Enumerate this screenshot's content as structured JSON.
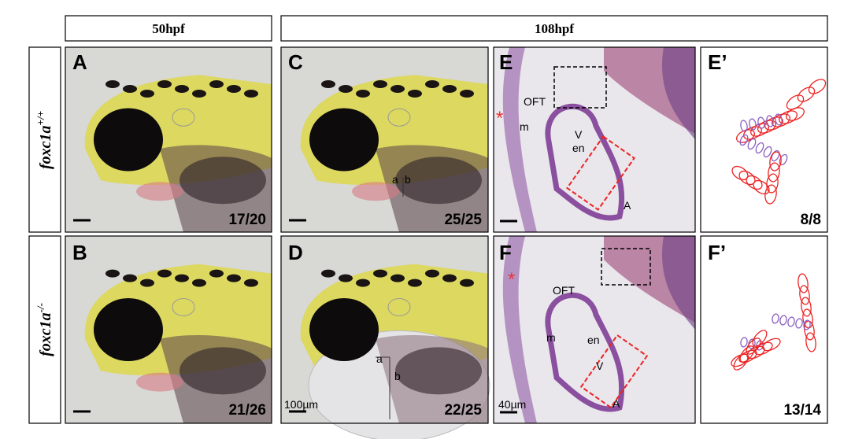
{
  "headers": [
    "50hpf",
    "108hpf"
  ],
  "rows": [
    {
      "gene": "foxc1a",
      "genotype": "+/+"
    },
    {
      "gene": "foxc1a",
      "genotype": "-/-"
    }
  ],
  "panels": [
    {
      "letter": "A",
      "count": "17/20"
    },
    {
      "letter": "B",
      "count": "21/26"
    },
    {
      "letter": "C",
      "count": "25/25",
      "labels": [
        "a",
        "b"
      ]
    },
    {
      "letter": "D",
      "count": "22/25",
      "labels": [
        "a",
        "b",
        "100µm"
      ]
    },
    {
      "letter": "E",
      "labels": [
        "*",
        "OFT",
        "m",
        "V",
        "en",
        "A"
      ]
    },
    {
      "letter": "F",
      "labels": [
        "*",
        "OFT",
        "m",
        "en",
        "V",
        "A",
        "40µm"
      ]
    },
    {
      "letter": "E’",
      "count": "8/8"
    },
    {
      "letter": "F’",
      "count": "13/14"
    }
  ]
}
